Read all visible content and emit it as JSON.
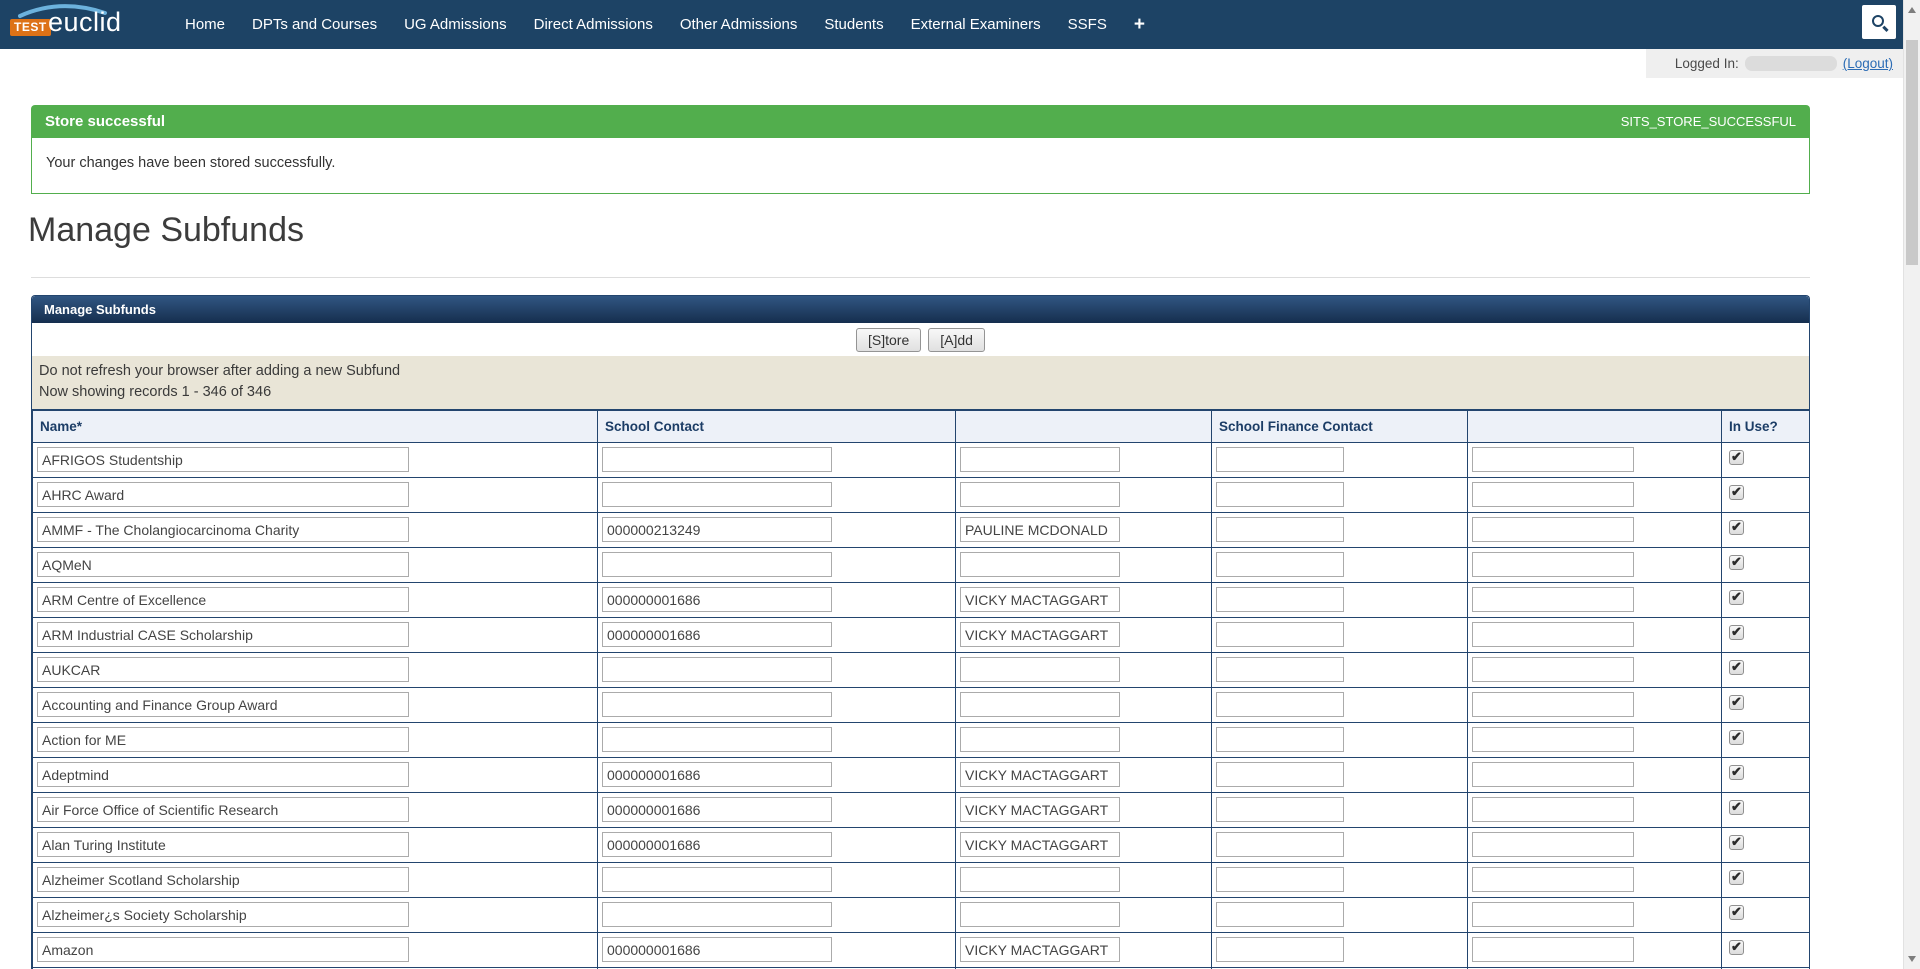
{
  "colors": {
    "navy": "#1d4365",
    "green": "#52ae4d",
    "beige": "#e9e5d7",
    "table_header_bg": "#edf1f8",
    "border_navy": "#23456e",
    "link_blue": "#2b6cb5",
    "logo_orange": "#dd7217"
  },
  "nav": {
    "logo_test": "TEST",
    "logo_euclid": "euclid",
    "items": [
      "Home",
      "DPTs and Courses",
      "UG Admissions",
      "Direct Admissions",
      "Other Admissions",
      "Students",
      "External Examiners",
      "SSFS"
    ],
    "plus_label": "+"
  },
  "session": {
    "logged_in_label": "Logged In:",
    "logout_label": "(Logout)"
  },
  "alert": {
    "title": "Store successful",
    "code": "SITS_STORE_SUCCESSFUL",
    "message": "Your changes have been stored successfully."
  },
  "page": {
    "title": "Manage Subfunds"
  },
  "panel": {
    "title": "Manage Subfunds",
    "store_button": "[S]tore",
    "add_button": "[A]dd",
    "notice_line1": "Do not refresh your browser after adding a new Subfund",
    "notice_line2": "Now showing records 1 - 346 of 346"
  },
  "table": {
    "headers": [
      "Name*",
      "School Contact",
      "",
      "School Finance Contact",
      "",
      "In Use?"
    ],
    "rows": [
      {
        "name": "AFRIGOS Studentship",
        "school_contact": "",
        "school_contact_name": "",
        "finance_contact": "",
        "finance_contact_name": "",
        "in_use": true
      },
      {
        "name": "AHRC Award",
        "school_contact": "",
        "school_contact_name": "",
        "finance_contact": "",
        "finance_contact_name": "",
        "in_use": true
      },
      {
        "name": "AMMF - The Cholangiocarcinoma Charity",
        "school_contact": "000000213249",
        "school_contact_name": "PAULINE MCDONALD",
        "finance_contact": "",
        "finance_contact_name": "",
        "in_use": true
      },
      {
        "name": "AQMeN",
        "school_contact": "",
        "school_contact_name": "",
        "finance_contact": "",
        "finance_contact_name": "",
        "in_use": true
      },
      {
        "name": "ARM Centre of Excellence",
        "school_contact": "000000001686",
        "school_contact_name": "VICKY MACTAGGART",
        "finance_contact": "",
        "finance_contact_name": "",
        "in_use": true
      },
      {
        "name": "ARM Industrial CASE Scholarship",
        "school_contact": "000000001686",
        "school_contact_name": "VICKY MACTAGGART",
        "finance_contact": "",
        "finance_contact_name": "",
        "in_use": true
      },
      {
        "name": "AUKCAR",
        "school_contact": "",
        "school_contact_name": "",
        "finance_contact": "",
        "finance_contact_name": "",
        "in_use": true
      },
      {
        "name": "Accounting and Finance Group Award",
        "school_contact": "",
        "school_contact_name": "",
        "finance_contact": "",
        "finance_contact_name": "",
        "in_use": true
      },
      {
        "name": "Action for ME",
        "school_contact": "",
        "school_contact_name": "",
        "finance_contact": "",
        "finance_contact_name": "",
        "in_use": true
      },
      {
        "name": "Adeptmind",
        "school_contact": "000000001686",
        "school_contact_name": "VICKY MACTAGGART",
        "finance_contact": "",
        "finance_contact_name": "",
        "in_use": true
      },
      {
        "name": "Air Force Office of Scientific Research",
        "school_contact": "000000001686",
        "school_contact_name": "VICKY MACTAGGART",
        "finance_contact": "",
        "finance_contact_name": "",
        "in_use": true
      },
      {
        "name": "Alan Turing Institute",
        "school_contact": "000000001686",
        "school_contact_name": "VICKY MACTAGGART",
        "finance_contact": "",
        "finance_contact_name": "",
        "in_use": true
      },
      {
        "name": "Alzheimer Scotland Scholarship",
        "school_contact": "",
        "school_contact_name": "",
        "finance_contact": "",
        "finance_contact_name": "",
        "in_use": true
      },
      {
        "name": "Alzheimer¿s Society Scholarship",
        "school_contact": "",
        "school_contact_name": "",
        "finance_contact": "",
        "finance_contact_name": "",
        "in_use": true
      },
      {
        "name": "Amazon",
        "school_contact": "000000001686",
        "school_contact_name": "VICKY MACTAGGART",
        "finance_contact": "",
        "finance_contact_name": "",
        "in_use": true
      },
      {
        "name": "",
        "school_contact": "",
        "school_contact_name": "",
        "finance_contact": "",
        "finance_contact_name": "",
        "in_use": true
      }
    ]
  }
}
